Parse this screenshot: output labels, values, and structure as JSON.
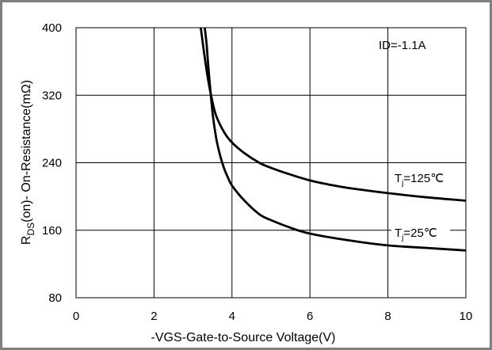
{
  "chart_data": {
    "type": "line",
    "xlabel": "-VGS-Gate-to-Source  Voltage(V)",
    "ylabel": "R_DS(on)- On-Resistance(mΩ)",
    "ylabel_main": "R",
    "ylabel_sub": "DS",
    "ylabel_rest": "(on)- On-Resistance(mΩ)",
    "xlim": [
      0,
      10
    ],
    "ylim": [
      80,
      400
    ],
    "x_ticks": [
      0,
      2,
      4,
      6,
      8,
      10
    ],
    "y_ticks": [
      80,
      160,
      240,
      320,
      400
    ],
    "grid": true,
    "annotation": "ID=-1.1A",
    "series": [
      {
        "name": "Tj=125℃",
        "label_main": "T",
        "label_sub": "j",
        "label_rest": "=125℃",
        "x": [
          3.2,
          3.3,
          3.4,
          3.5,
          3.6,
          3.8,
          4.0,
          4.3,
          4.7,
          5.0,
          5.5,
          6.0,
          6.5,
          7.0,
          8.0,
          9.0,
          10.0
        ],
        "y": [
          400,
          365,
          335,
          312,
          295,
          276,
          264,
          252,
          240,
          234,
          226,
          219,
          214,
          210,
          204,
          199,
          195
        ]
      },
      {
        "name": "Tj=25℃",
        "label_main": "T",
        "label_sub": "j",
        "label_rest": "=25℃",
        "x": [
          3.3,
          3.35,
          3.4,
          3.5,
          3.6,
          3.7,
          3.8,
          3.9,
          4.0,
          4.3,
          4.7,
          5.0,
          5.5,
          6.0,
          7.0,
          8.0,
          9.0,
          10.0
        ],
        "y": [
          400,
          380,
          350,
          300,
          268,
          248,
          233,
          222,
          213,
          196,
          179,
          172,
          163,
          156,
          148,
          142,
          139,
          136
        ]
      }
    ]
  }
}
